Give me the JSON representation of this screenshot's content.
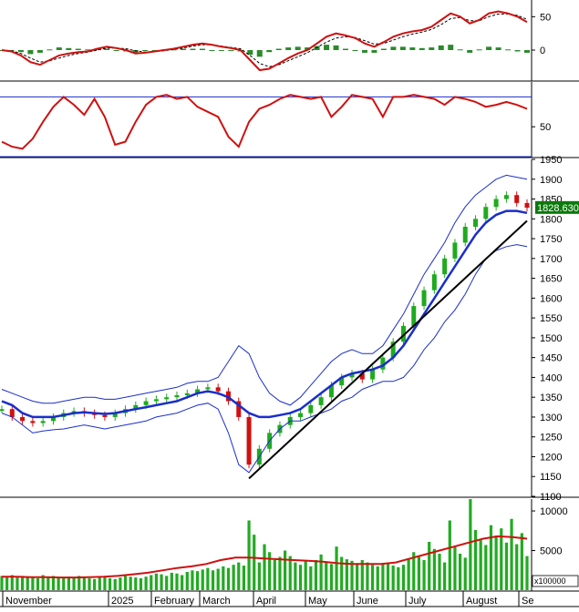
{
  "colors": {
    "up": "#1faa1f",
    "down": "#d01010",
    "macd_line": "#d01010",
    "signal_line": "#000000",
    "histogram": "#2a8a2a",
    "rsi_line": "#d01010",
    "ma_line": "#1a2ecc",
    "bollinger": "#1a2ecc",
    "trendline": "#000000",
    "volume_bar": "#22aa22",
    "volume_ma": "#d01010",
    "price_badge_bg": "#0a7a0a",
    "price_badge_text": "#ffffff",
    "ref_lines": "#1a2ecc"
  },
  "chart_data": [
    {
      "panel": "macd",
      "type": "line",
      "y_ticks": [
        "50",
        "0"
      ],
      "ylim": [
        -45,
        75
      ],
      "series": [
        {
          "values": [
            0,
            -2,
            -8,
            -18,
            -22,
            -15,
            -8,
            -5,
            -3,
            -2,
            2,
            5,
            3,
            0,
            -5,
            -4,
            -2,
            0,
            2,
            5,
            8,
            10,
            8,
            5,
            3,
            0,
            -15,
            -30,
            -28,
            -20,
            -12,
            -5,
            0,
            10,
            20,
            25,
            22,
            18,
            10,
            5,
            12,
            20,
            25,
            28,
            30,
            35,
            45,
            55,
            50,
            40,
            45,
            55,
            58,
            55,
            50,
            42
          ]
        },
        {
          "values": [
            0,
            -1,
            -5,
            -12,
            -18,
            -16,
            -12,
            -8,
            -5,
            -3,
            0,
            3,
            3,
            2,
            -1,
            -3,
            -2,
            -1,
            1,
            3,
            6,
            8,
            8,
            6,
            4,
            2,
            -8,
            -20,
            -25,
            -22,
            -16,
            -10,
            -4,
            4,
            12,
            18,
            20,
            19,
            14,
            9,
            10,
            15,
            20,
            24,
            27,
            31,
            38,
            47,
            49,
            44,
            44,
            50,
            54,
            54,
            52,
            46
          ]
        },
        {
          "values": [
            0,
            -1,
            -3,
            -6,
            -4,
            1,
            4,
            3,
            2,
            1,
            2,
            2,
            0,
            -2,
            -4,
            -1,
            0,
            1,
            1,
            2,
            2,
            2,
            0,
            -1,
            -1,
            -2,
            -7,
            -10,
            -3,
            2,
            4,
            5,
            4,
            6,
            8,
            7,
            2,
            -1,
            -4,
            -4,
            2,
            5,
            5,
            4,
            3,
            4,
            7,
            8,
            1,
            -4,
            1,
            5,
            4,
            1,
            -2,
            -4
          ]
        }
      ]
    },
    {
      "panel": "rsi",
      "type": "line",
      "y_ticks": [
        "50"
      ],
      "ylim": [
        20,
        95
      ],
      "reference_lines": [
        80,
        20
      ],
      "values": [
        35,
        30,
        28,
        38,
        55,
        70,
        80,
        72,
        62,
        78,
        60,
        32,
        35,
        55,
        72,
        80,
        82,
        78,
        80,
        70,
        65,
        60,
        40,
        30,
        55,
        68,
        72,
        78,
        82,
        80,
        78,
        80,
        60,
        70,
        82,
        80,
        78,
        60,
        80,
        80,
        82,
        80,
        78,
        72,
        80,
        78,
        75,
        70,
        72,
        75,
        72,
        68
      ],
      "series": [
        {
          "values": [
            35,
            30,
            28,
            38,
            55,
            70,
            80,
            72,
            62,
            78,
            60,
            32,
            35,
            55,
            72,
            80,
            82,
            78,
            80,
            70,
            65,
            60,
            40,
            30,
            55,
            68,
            72,
            78,
            82,
            80,
            78,
            80,
            60,
            70,
            82,
            80,
            78,
            60,
            80,
            80,
            82,
            80,
            78,
            72,
            80,
            78,
            75,
            70,
            72,
            75,
            72,
            68
          ]
        }
      ]
    },
    {
      "panel": "price",
      "type": "line",
      "y_ticks": [
        "1950",
        "1900",
        "1850",
        "1800",
        "1750",
        "1700",
        "1650",
        "1600",
        "1550",
        "1500",
        "1450",
        "1400",
        "1350",
        "1300",
        "1250",
        "1200",
        "1150",
        "1100"
      ],
      "ylim": [
        1100,
        1950
      ],
      "last_price": "1828.630",
      "series": [
        {
          "values": [
            1320,
            1300,
            1290,
            1285,
            1290,
            1300,
            1310,
            1315,
            1310,
            1305,
            1300,
            1310,
            1320,
            1330,
            1340,
            1345,
            1350,
            1355,
            1360,
            1370,
            1375,
            1365,
            1340,
            1300,
            1180,
            1220,
            1260,
            1280,
            1300,
            1310,
            1330,
            1350,
            1380,
            1400,
            1410,
            1395,
            1420,
            1450,
            1490,
            1530,
            1580,
            1620,
            1660,
            1700,
            1740,
            1780,
            1800,
            1830,
            1850,
            1860,
            1840,
            1828
          ]
        },
        {
          "values": [
            1340,
            1330,
            1310,
            1300,
            1300,
            1300,
            1305,
            1310,
            1312,
            1310,
            1308,
            1310,
            1315,
            1320,
            1325,
            1330,
            1335,
            1340,
            1350,
            1360,
            1365,
            1360,
            1350,
            1330,
            1310,
            1300,
            1300,
            1305,
            1310,
            1320,
            1340,
            1360,
            1380,
            1400,
            1410,
            1415,
            1420,
            1430,
            1450,
            1480,
            1520,
            1560,
            1600,
            1640,
            1680,
            1720,
            1760,
            1790,
            1810,
            1820,
            1820,
            1815
          ]
        },
        {
          "values": [
            1370,
            1360,
            1350,
            1340,
            1335,
            1335,
            1340,
            1345,
            1350,
            1350,
            1345,
            1345,
            1350,
            1355,
            1360,
            1365,
            1370,
            1375,
            1385,
            1390,
            1390,
            1400,
            1440,
            1480,
            1460,
            1400,
            1360,
            1340,
            1330,
            1350,
            1380,
            1410,
            1440,
            1460,
            1470,
            1460,
            1460,
            1480,
            1520,
            1560,
            1610,
            1660,
            1700,
            1740,
            1790,
            1830,
            1860,
            1880,
            1900,
            1910,
            1905,
            1900
          ]
        },
        {
          "values": [
            1310,
            1300,
            1280,
            1260,
            1265,
            1268,
            1270,
            1275,
            1280,
            1275,
            1270,
            1275,
            1280,
            1285,
            1290,
            1300,
            1305,
            1310,
            1320,
            1330,
            1335,
            1320,
            1260,
            1180,
            1160,
            1200,
            1240,
            1270,
            1290,
            1290,
            1300,
            1310,
            1320,
            1340,
            1350,
            1370,
            1380,
            1390,
            1390,
            1400,
            1430,
            1470,
            1500,
            1540,
            1570,
            1610,
            1660,
            1700,
            1720,
            1730,
            1735,
            1730
          ]
        },
        {
          "values": [
            1145,
            1795
          ]
        }
      ]
    },
    {
      "panel": "volume",
      "type": "bar",
      "y_ticks": [
        "10000",
        "5000"
      ],
      "unit_label": "x100000",
      "ylim": [
        0,
        11500
      ],
      "values": [
        1800,
        1700,
        1900,
        1600,
        1800,
        1700,
        1600,
        1500,
        1900,
        1700,
        1800,
        1600,
        1500,
        1700,
        1600,
        1800,
        1700,
        1500,
        1400,
        1600,
        1700,
        1500,
        1400,
        1600,
        1800,
        1700,
        1600,
        1500,
        1700,
        1900,
        2100,
        2000,
        1800,
        2200,
        2100,
        1900,
        2300,
        2500,
        2400,
        2600,
        2800,
        2500,
        2700,
        3000,
        2800,
        3200,
        3500,
        3100,
        8800,
        7000,
        3500,
        5800,
        4800,
        3800,
        4200,
        5000,
        4300,
        3500,
        3200,
        3700,
        3000,
        3800,
        4500,
        3600,
        3300,
        5500,
        4200,
        3900,
        3700,
        3400,
        3800,
        3500,
        3200,
        3000,
        3300,
        3500,
        3100,
        2900,
        3200,
        4000,
        4800,
        4200,
        3800,
        6100,
        5200,
        4600,
        3500,
        8800,
        5500,
        4600,
        4100,
        11500,
        7600,
        6300,
        5700,
        8200,
        6900,
        7800,
        6000,
        9000,
        5800,
        7200,
        4300
      ],
      "series": [
        {
          "values": [
            1800,
            1700,
            1900,
            1600,
            1800,
            1700,
            1600,
            1500,
            1900,
            1700,
            1800,
            1600,
            1500,
            1700,
            1600,
            1800,
            1700,
            1500,
            1400,
            1600,
            1700,
            1500,
            1400,
            1600,
            1800,
            1700,
            1600,
            1500,
            1700,
            1900,
            2100,
            2000,
            1800,
            2200,
            2100,
            1900,
            2300,
            2500,
            2400,
            2600,
            2800,
            2500,
            2700,
            3000,
            2800,
            3200,
            3500,
            3100,
            8800,
            7000,
            3500,
            5800,
            4800,
            3800,
            4200,
            5000,
            4300,
            3500,
            3200,
            3700,
            3000,
            3800,
            4500,
            3600,
            3300,
            5500,
            4200,
            3900,
            3700,
            3400,
            3800,
            3500,
            3200,
            3000,
            3300,
            3500,
            3100,
            2900,
            3200,
            4000,
            4800,
            4200,
            3800,
            6100,
            5200,
            4600,
            3500,
            8800,
            5500,
            4600,
            4100,
            11500,
            7600,
            6300,
            5700,
            8200,
            6900,
            7800,
            6000,
            9000,
            5800,
            7200,
            4300
          ]
        },
        {
          "values": [
            1700,
            1700,
            1650,
            1650,
            1600,
            1600,
            1650,
            1700,
            1800,
            2000,
            2200,
            2500,
            2800,
            3000,
            3300,
            3800,
            4100,
            4100,
            4000,
            3900,
            3800,
            3700,
            3600,
            3400,
            3300,
            3300,
            3300,
            3500,
            4000,
            4500,
            5000,
            5500,
            6000,
            6500,
            6800,
            6700,
            6500
          ]
        }
      ]
    }
  ],
  "x_labels": [
    "November",
    "2025",
    "February",
    "March",
    "April",
    "May",
    "June",
    "July",
    "August",
    "Se"
  ]
}
